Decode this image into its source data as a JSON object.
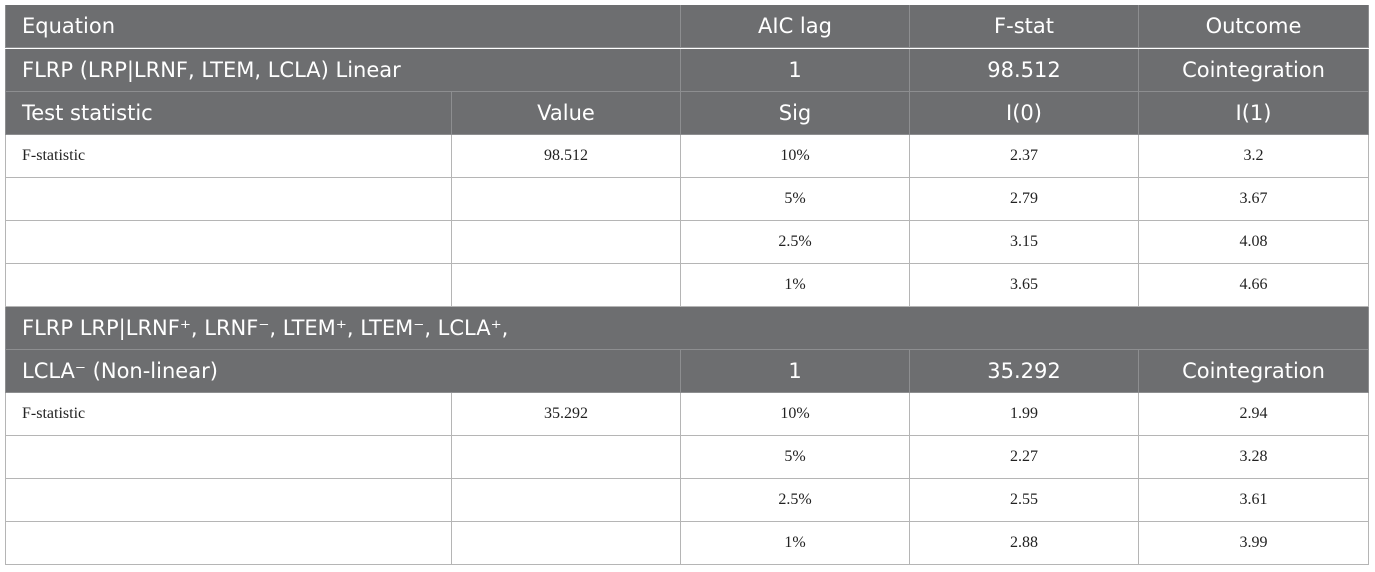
{
  "table": {
    "header": [
      "Equation",
      "AIC lag",
      "F-stat",
      "Outcome"
    ],
    "subheader": [
      "Test statistic",
      "Value",
      "Sig",
      "I(0)",
      "I(1)"
    ],
    "sections": [
      {
        "equation_lines": [
          "FLRP (LRP|LRNF, LTEM, LCLA) Linear"
        ],
        "aic_lag": "1",
        "f_stat": "98.512",
        "outcome": "Cointegration",
        "test_statistic": "F-statistic",
        "value": "98.512",
        "rows": [
          [
            "10%",
            "2.37",
            "3.2"
          ],
          [
            "5%",
            "2.79",
            "3.67"
          ],
          [
            "2.5%",
            "3.15",
            "4.08"
          ],
          [
            "1%",
            "3.65",
            "4.66"
          ]
        ]
      },
      {
        "equation_lines": [
          "FLRP LRP|LRNF⁺, LRNF⁻, LTEM⁺, LTEM⁻, LCLA⁺,",
          "LCLA⁻ (Non-linear)"
        ],
        "aic_lag": "1",
        "f_stat": "35.292",
        "outcome": "Cointegration",
        "test_statistic": "F-statistic",
        "value": "35.292",
        "rows": [
          [
            "10%",
            "1.99",
            "2.94"
          ],
          [
            "5%",
            "2.27",
            "3.28"
          ],
          [
            "2.5%",
            "2.55",
            "3.61"
          ],
          [
            "1%",
            "2.88",
            "3.99"
          ]
        ]
      }
    ]
  }
}
